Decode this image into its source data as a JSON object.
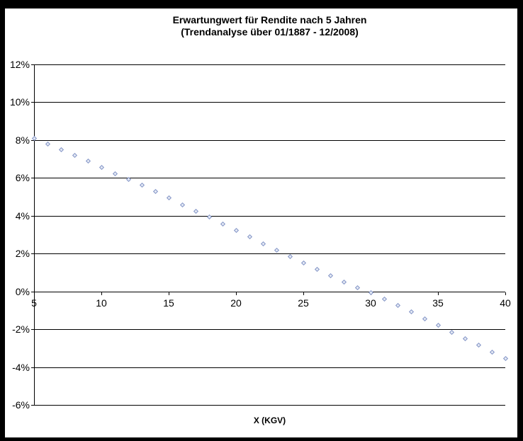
{
  "chart_data": {
    "type": "scatter",
    "title": "Erwartungwert für Rendite nach 5 Jahren",
    "subtitle": "(Trendanalyse über 01/1887 - 12/2008)",
    "xlabel": "X (KGV)",
    "ylabel": "",
    "legend": "none",
    "grid": "horizontal-only",
    "xlim": [
      5,
      40
    ],
    "ylim": [
      -6,
      12
    ],
    "x_tick_labels": [
      "5",
      "10",
      "15",
      "20",
      "25",
      "30",
      "35",
      "40"
    ],
    "x_tick_values": [
      5,
      10,
      15,
      20,
      25,
      30,
      35,
      40
    ],
    "y_tick_labels": [
      "12%",
      "10%",
      "8%",
      "6%",
      "4%",
      "2%",
      "0%",
      "-2%",
      "-4%",
      "-6%"
    ],
    "y_tick_values": [
      12,
      10,
      8,
      6,
      4,
      2,
      0,
      -2,
      -4,
      -6
    ],
    "x": [
      5,
      6,
      7,
      8,
      9,
      10,
      11,
      12,
      13,
      14,
      15,
      16,
      17,
      18,
      19,
      20,
      21,
      22,
      23,
      24,
      25,
      26,
      27,
      28,
      29,
      30,
      31,
      32,
      33,
      34,
      35,
      36,
      37,
      38,
      39,
      40
    ],
    "y": [
      8.1,
      7.8,
      7.5,
      7.2,
      6.9,
      6.55,
      6.22,
      5.93,
      5.62,
      5.28,
      4.93,
      4.58,
      4.25,
      3.92,
      3.58,
      3.24,
      2.88,
      2.53,
      2.19,
      1.85,
      1.51,
      1.17,
      0.83,
      0.5,
      0.2,
      -0.08,
      -0.42,
      -0.75,
      -1.08,
      -1.45,
      -1.8,
      -2.15,
      -2.5,
      -2.85,
      -3.2,
      -3.54
    ],
    "marker": {
      "shape": "open-diamond",
      "border_color": "#8294c6",
      "fill_color": "#e6ebf5"
    },
    "colors": {
      "gridline": "#000000",
      "axis": "#000000",
      "frame": "#000000",
      "background": "#ffffff",
      "text": "#000000"
    }
  }
}
